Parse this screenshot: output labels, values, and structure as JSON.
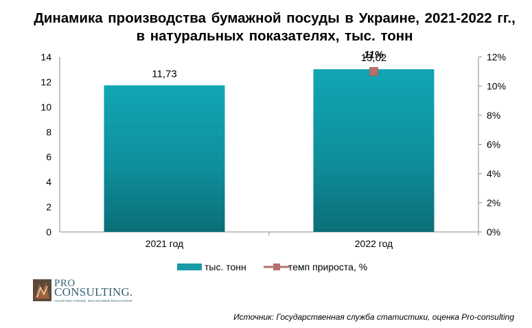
{
  "chart_data": {
    "type": "bar",
    "title": "Динамика производства бумажной посуды в Украине, 2021-2022 гг., в натуральных показателях, тыс. тонн",
    "categories": [
      "2021 год",
      "2022 год"
    ],
    "series": [
      {
        "name": "тыс. тонн",
        "type": "bar",
        "axis": "left",
        "values": [
          11.73,
          13.02
        ],
        "labels": [
          "11,73",
          "13,02"
        ],
        "color": "#1a9aa6"
      },
      {
        "name": "темп прироста, %",
        "type": "line",
        "axis": "right",
        "values": [
          null,
          11
        ],
        "labels": [
          "",
          "11%"
        ],
        "color": "#b8706d"
      }
    ],
    "y_left": {
      "ylim": [
        0,
        14
      ],
      "ticks": [
        "0",
        "2",
        "4",
        "6",
        "8",
        "10",
        "12",
        "14"
      ]
    },
    "y_right": {
      "ylim": [
        0,
        12
      ],
      "ticks": [
        "0%",
        "2%",
        "4%",
        "6%",
        "8%",
        "10%",
        "12%"
      ]
    },
    "grid": false,
    "legend": "bottom"
  },
  "logo": {
    "line1": "PRO",
    "line2": "CONSULTING.",
    "tagline": "АНАЛІТИКА РИНКІВ, ФІНАНСОВИЙ КОНСАЛТИНГ"
  },
  "source": "Источник: Государственная служба статистики, оценка Pro-consulting"
}
